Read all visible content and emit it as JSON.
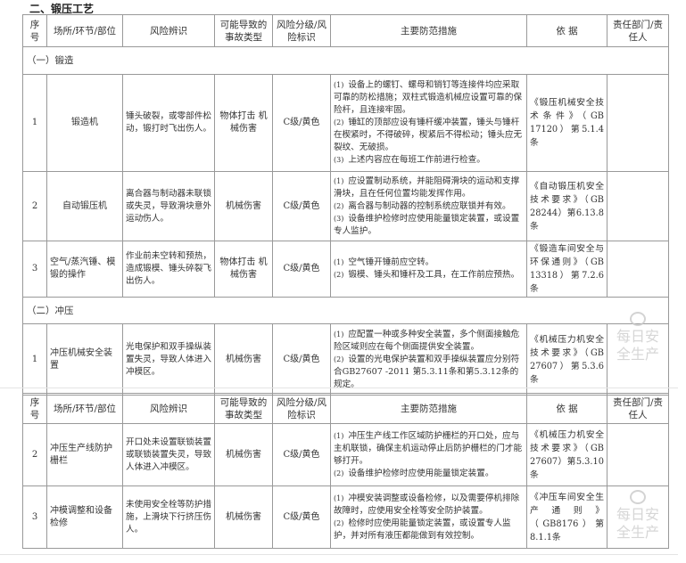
{
  "section_title": "二、锻压工艺",
  "headers": [
    "序号",
    "场所/环节/部位",
    "风险辨识",
    "可能导致的事故类型",
    "风险分级/风险标识",
    "主要防范措施",
    "依 据",
    "责任部门/责任人"
  ],
  "groups": [
    {
      "title": "（一）锻造",
      "rows": [
        {
          "no": "1",
          "place": "锻造机",
          "risk": "锤头破裂，或零部件松动，锻打时飞出伤人。",
          "accident": "物体打击 机械伤害",
          "level": "C级/黄色",
          "measures": [
            "设备上的螺钉、螺母和销钉等连接件均应采取可靠的防松措施；双柱式锻造机械应设置可靠的保险杆，且连接牢固。",
            "锤缸的顶部应设有锤杆缓冲装置，锤头与锤杆在楔紧时，不得破碎，楔紧后不得松动；锤头应无裂纹、无破损。",
            "上述内容应在每班工作前进行检查。"
          ],
          "basis": "《锻压机械安全技术条件》（GB 17120）第5.1.4条",
          "owner": ""
        },
        {
          "no": "2",
          "place": "自动锻压机",
          "risk": "离合器与制动器未联锁或失灵，导致滑块意外运动伤人。",
          "accident": "机械伤害",
          "level": "C级/黄色",
          "measures": [
            "应设置制动系统，并能阻碍滑块的运动和支撑滑块，且在任何位置均能发挥作用。",
            "离合器与制动器的控制系统应联锁并有效。",
            "设备维护检修时应使用能量锁定装置，或设置专人监护。"
          ],
          "basis": "《自动锻压机安全技术要求》（GB 28244）第6.13.8条",
          "owner": ""
        },
        {
          "no": "3",
          "place": "空气/蒸汽锤、模锻的操作",
          "risk": "作业前未空转和预热，造成锻模、锤头碎裂飞出伤人。",
          "accident": "物体打击 机械伤害",
          "level": "C级/黄色",
          "measures": [
            "空气锤开锤前应空转。",
            "锻模、锤头和锤杆及工具，在工作前应预热。"
          ],
          "basis": "《锻造车间安全与环保通则》（GB 13318）第7.2.6条",
          "owner": ""
        }
      ]
    },
    {
      "title": "（二）冲压",
      "rows": [
        {
          "no": "1",
          "place": "冲压机械安全装置",
          "risk": "光电保护和双手操纵装置失灵，导致人体进入冲模区。",
          "accident": "机械伤害",
          "level": "C级/黄色",
          "measures": [
            "应配置一种或多种安全装置，多个侧面接触危险区域则应在每个侧面提供安全装置。",
            "设置的光电保护装置和双手操纵装置应分别符合GB27607 -2011 第5.3.11条和第5.3.12条的规定。"
          ],
          "basis": "《机械压力机安全技术要求》（GB 27607）第5.3.6条",
          "owner": ""
        }
      ]
    }
  ],
  "continued_rows": [
    {
      "no": "2",
      "place": "冲压生产线防护栅栏",
      "risk": "开口处未设置联锁装置或联锁装置失灵，导致人体进入冲模区。",
      "accident": "机械伤害",
      "level": "C级/黄色",
      "measures": [
        "冲压生产线工作区域防护栅栏的开口处，应与主机联锁，确保主机运动停止后防护栅栏的门才能够打开。",
        "设备维护检修时应使用能量锁定装置。"
      ],
      "basis": "《机械压力机安全技术要求》（GB 27607）第5.3.10条",
      "owner": ""
    },
    {
      "no": "3",
      "place": "冲模调整和设备检修",
      "risk": "未使用安全栓等防护措施，上滑块下行挤压伤人。",
      "accident": "机械伤害",
      "level": "C级/黄色",
      "measures": [
        "冲模安装调整或设备检修，以及需要停机排除故障时，应使用安全栓等安全防护装置。",
        "检修时应使用能量锁定装置，或设置专人监护，并对所有液压都能做到有效控制。"
      ],
      "basis": "《冲压车间安全生产通则》（GB8176）第8.1.1条",
      "owner": ""
    }
  ],
  "measure_numbers": [
    "(1)",
    "(2)",
    "(3)"
  ],
  "watermark": "每日安全生产"
}
